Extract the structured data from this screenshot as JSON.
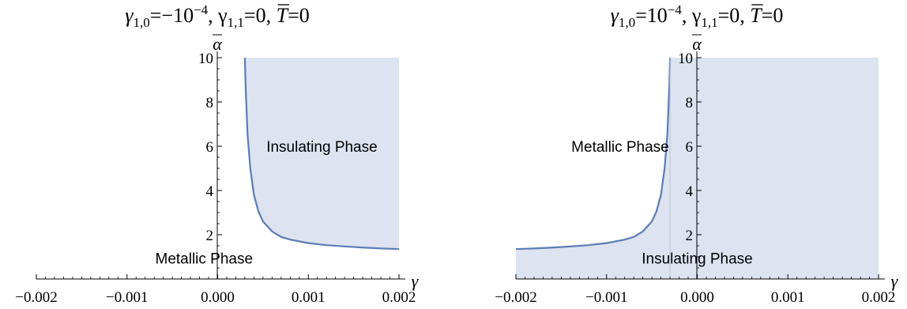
{
  "chart_data": [
    {
      "type": "area",
      "title": "γ1,0=−10−4, γ1,1=0, T̄=0",
      "title_parts": {
        "g10": "γ",
        "g10_sub": "1,0",
        "g10_val": "=−10",
        "g10_exp": "−4",
        "g11": ", γ",
        "g11_sub": "1,1",
        "g11_val": "=0, ",
        "T": "T",
        "T_val": "=0"
      },
      "xlabel": "γ",
      "ylabel": "α",
      "xlim": [
        -0.002,
        0.002
      ],
      "ylim": [
        0,
        10
      ],
      "x_ticks": [
        "−0.002",
        "−0.001",
        "0.000",
        "0.001",
        "0.002"
      ],
      "y_ticks": [
        "2",
        "4",
        "6",
        "8",
        "10"
      ],
      "boundary": {
        "x": [
          0.0003,
          0.00031,
          0.00033,
          0.00036,
          0.0004,
          0.00045,
          0.0005,
          0.0006,
          0.0007,
          0.0008,
          0.001,
          0.0012,
          0.0014,
          0.0016,
          0.0018,
          0.002
        ],
        "y": [
          10.0,
          8.5,
          6.5,
          5.0,
          3.8,
          3.05,
          2.6,
          2.15,
          1.9,
          1.78,
          1.62,
          1.53,
          1.47,
          1.42,
          1.38,
          1.35
        ]
      },
      "shaded_side": "right",
      "fill_color": "#dde3f0",
      "line_color": "#5b7db5",
      "regions": [
        {
          "label": "Insulating Phase",
          "x": 0.00115,
          "y": 6.0
        },
        {
          "label": "Metallic Phase",
          "x": -0.00015,
          "y": 0.95
        }
      ]
    },
    {
      "type": "area",
      "title": "γ1,0=10−4, γ1,1=0, T̄=0",
      "title_parts": {
        "g10": "γ",
        "g10_sub": "1,0",
        "g10_val": "=10",
        "g10_exp": "−4",
        "g11": ", γ",
        "g11_sub": "1,1",
        "g11_val": "=0, ",
        "T": "T",
        "T_val": "=0"
      },
      "xlabel": "γ",
      "ylabel": "α",
      "xlim": [
        -0.002,
        0.002
      ],
      "ylim": [
        0,
        10
      ],
      "x_ticks": [
        "−0.002",
        "−0.001",
        "0.000",
        "0.001",
        "0.002"
      ],
      "y_ticks": [
        "2",
        "4",
        "6",
        "8",
        "10"
      ],
      "boundary": {
        "x": [
          -0.002,
          -0.0018,
          -0.0016,
          -0.0014,
          -0.0012,
          -0.001,
          -0.0008,
          -0.0007,
          -0.0006,
          -0.0005,
          -0.00045,
          -0.0004,
          -0.00036,
          -0.00033,
          -0.00031,
          -0.0003
        ],
        "y": [
          1.35,
          1.38,
          1.42,
          1.47,
          1.53,
          1.62,
          1.78,
          1.9,
          2.15,
          2.6,
          3.05,
          3.8,
          5.0,
          6.5,
          8.5,
          10.0
        ]
      },
      "shaded_side": "below-right",
      "fill_color": "#dde3f0",
      "line_color": "#5b7db5",
      "regions": [
        {
          "label": "Metallic Phase",
          "x": -0.00085,
          "y": 6.0
        },
        {
          "label": "Insulating Phase",
          "x": 0.0,
          "y": 0.95
        }
      ]
    }
  ]
}
